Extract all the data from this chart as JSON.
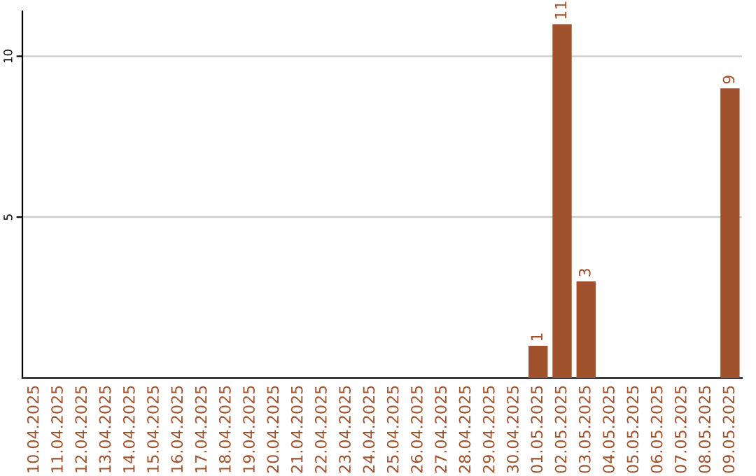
{
  "chart_data": {
    "type": "bar",
    "categories": [
      "10.04.2025",
      "11.04.2025",
      "12.04.2025",
      "13.04.2025",
      "14.04.2025",
      "15.04.2025",
      "16.04.2025",
      "17.04.2025",
      "18.04.2025",
      "19.04.2025",
      "20.04.2025",
      "21.04.2025",
      "22.04.2025",
      "23.04.2025",
      "24.04.2025",
      "25.04.2025",
      "26.04.2025",
      "27.04.2025",
      "28.04.2025",
      "29.04.2025",
      "30.04.2025",
      "01.05.2025",
      "02.05.2025",
      "03.05.2025",
      "04.05.2025",
      "05.05.2025",
      "06.05.2025",
      "07.05.2025",
      "08.05.2025",
      "09.05.2025"
    ],
    "values": [
      0,
      0,
      0,
      0,
      0,
      0,
      0,
      0,
      0,
      0,
      0,
      0,
      0,
      0,
      0,
      0,
      0,
      0,
      0,
      0,
      0,
      1,
      11,
      3,
      0,
      0,
      0,
      0,
      0,
      9
    ],
    "value_labels": [
      null,
      null,
      null,
      null,
      null,
      null,
      null,
      null,
      null,
      null,
      null,
      null,
      null,
      null,
      null,
      null,
      null,
      null,
      null,
      null,
      null,
      "1",
      "11",
      "3",
      null,
      null,
      null,
      null,
      null,
      "9"
    ],
    "color": "#a0522d",
    "ylim": [
      0,
      11.4
    ],
    "yticks": [
      5,
      10
    ],
    "grid": "y"
  }
}
